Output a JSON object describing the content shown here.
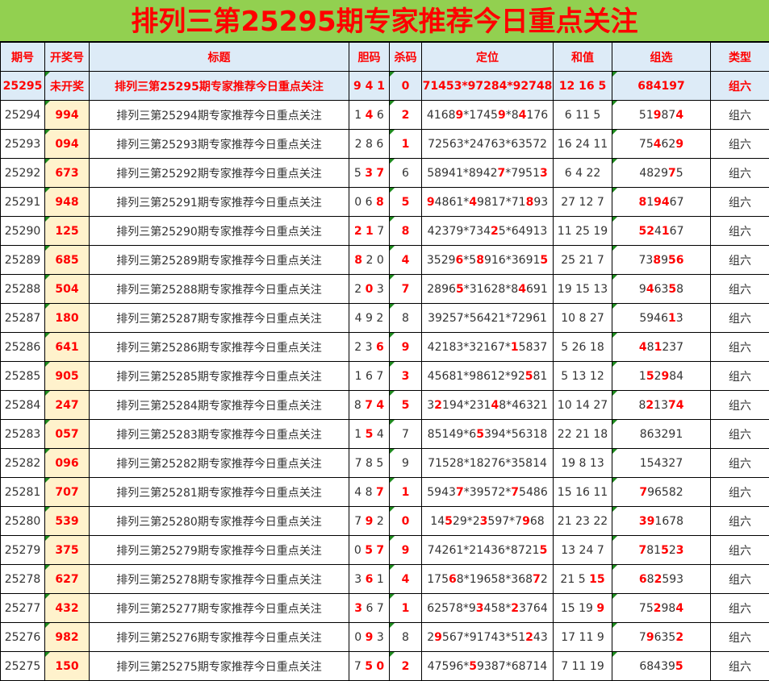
{
  "page_title": "排列三第25295期专家推荐今日重点关注",
  "colors": {
    "title_bg": "#92d050",
    "title_text": "#ff0000",
    "header_bg": "#ddebf7",
    "highlight": "#ff0000",
    "win_bg": "#fff2cc",
    "corner_mark": "#1e8a1e"
  },
  "headers": [
    "期号",
    "开奖号",
    "标题",
    "胆码",
    "杀码",
    "定位",
    "和值",
    "组选",
    "类型"
  ],
  "rows": [
    {
      "issue": "25295",
      "win": "未开奖",
      "title": "排列三第25295期专家推荐今日重点关注",
      "dan": "9 4 1",
      "sha": "0",
      "dingwei": "71453*97284*92748",
      "hezhi": "12 16 5",
      "zuxuan": "684197",
      "type": "组六"
    },
    {
      "issue": "25294",
      "win": "994",
      "title": "排列三第25294期专家推荐今日重点关注",
      "dan": "1 4 6",
      "sha": "2",
      "dingwei": "41689*17459*84176",
      "hezhi": "6 11 5",
      "zuxuan": "519874",
      "type": "组六"
    },
    {
      "issue": "25293",
      "win": "094",
      "title": "排列三第25293期专家推荐今日重点关注",
      "dan": "2 8 6",
      "sha": "1",
      "dingwei": "72563*24763*63572",
      "hezhi": "16 24 11",
      "zuxuan": "754629",
      "type": "组六"
    },
    {
      "issue": "25292",
      "win": "673",
      "title": "排列三第25292期专家推荐今日重点关注",
      "dan": "5 3 7",
      "sha": "6",
      "dingwei": "58941*89427*79513",
      "hezhi": "6 4 22",
      "zuxuan": "482975",
      "type": "组六"
    },
    {
      "issue": "25291",
      "win": "948",
      "title": "排列三第25291期专家推荐今日重点关注",
      "dan": "0 6 8",
      "sha": "5",
      "dingwei": "94861*49817*71893",
      "hezhi": "27 12 7",
      "zuxuan": "819467",
      "type": "组六"
    },
    {
      "issue": "25290",
      "win": "125",
      "title": "排列三第25290期专家推荐今日重点关注",
      "dan": "2 1 7",
      "sha": "8",
      "dingwei": "42379*73425*64913",
      "hezhi": "11 25 19",
      "zuxuan": "524167",
      "type": "组六"
    },
    {
      "issue": "25289",
      "win": "685",
      "title": "排列三第25289期专家推荐今日重点关注",
      "dan": "8 2 0",
      "sha": "4",
      "dingwei": "35296*58916*36915",
      "hezhi": "25 21 7",
      "zuxuan": "738956",
      "type": "组六"
    },
    {
      "issue": "25288",
      "win": "504",
      "title": "排列三第25288期专家推荐今日重点关注",
      "dan": "2 0 3",
      "sha": "7",
      "dingwei": "28965*31628*84691",
      "hezhi": "19 15 13",
      "zuxuan": "946358",
      "type": "组六"
    },
    {
      "issue": "25287",
      "win": "180",
      "title": "排列三第25287期专家推荐今日重点关注",
      "dan": "4 9 2",
      "sha": "8",
      "dingwei": "39257*56421*72961",
      "hezhi": "10 8 27",
      "zuxuan": "594613",
      "type": "组六"
    },
    {
      "issue": "25286",
      "win": "641",
      "title": "排列三第25286期专家推荐今日重点关注",
      "dan": "2 3 6",
      "sha": "9",
      "dingwei": "42183*32167*15837",
      "hezhi": "5 26 18",
      "zuxuan": "481237",
      "type": "组六"
    },
    {
      "issue": "25285",
      "win": "905",
      "title": "排列三第25285期专家推荐今日重点关注",
      "dan": "1 6 7",
      "sha": "3",
      "dingwei": "45681*98612*92581",
      "hezhi": "5 13 12",
      "zuxuan": "152984",
      "type": "组六"
    },
    {
      "issue": "25284",
      "win": "247",
      "title": "排列三第25284期专家推荐今日重点关注",
      "dan": "8 7 4",
      "sha": "5",
      "dingwei": "32194*23148*46321",
      "hezhi": "10 14 27",
      "zuxuan": "821374",
      "type": "组六"
    },
    {
      "issue": "25283",
      "win": "057",
      "title": "排列三第25283期专家推荐今日重点关注",
      "dan": "1 5 4",
      "sha": "7",
      "dingwei": "85149*65394*56318",
      "hezhi": "22 21 18",
      "zuxuan": "863291",
      "type": "组六"
    },
    {
      "issue": "25282",
      "win": "096",
      "title": "排列三第25282期专家推荐今日重点关注",
      "dan": "7 8 5",
      "sha": "9",
      "dingwei": "71528*18276*35814",
      "hezhi": "19 8 13",
      "zuxuan": "154327",
      "type": "组六"
    },
    {
      "issue": "25281",
      "win": "707",
      "title": "排列三第25281期专家推荐今日重点关注",
      "dan": "4 8 7",
      "sha": "1",
      "dingwei": "59437*39572*75486",
      "hezhi": "15 16 11",
      "zuxuan": "796582",
      "type": "组六"
    },
    {
      "issue": "25280",
      "win": "539",
      "title": "排列三第25280期专家推荐今日重点关注",
      "dan": "7 9 2",
      "sha": "0",
      "dingwei": "14529*23597*7968",
      "hezhi": "21 23 22",
      "zuxuan": "391678",
      "type": "组六"
    },
    {
      "issue": "25279",
      "win": "375",
      "title": "排列三第25279期专家推荐今日重点关注",
      "dan": "0 5 7",
      "sha": "9",
      "dingwei": "74261*21436*87215",
      "hezhi": "13 24 7",
      "zuxuan": "781523",
      "type": "组六"
    },
    {
      "issue": "25278",
      "win": "627",
      "title": "排列三第25278期专家推荐今日重点关注",
      "dan": "3 6 1",
      "sha": "4",
      "dingwei": "17568*19658*36872",
      "hezhi": "21 5 15",
      "zuxuan": "682593",
      "type": "组六"
    },
    {
      "issue": "25277",
      "win": "432",
      "title": "排列三第25277期专家推荐今日重点关注",
      "dan": "3 6 7",
      "sha": "1",
      "dingwei": "62578*93458*23764",
      "hezhi": "15 19 9",
      "zuxuan": "752984",
      "type": "组六"
    },
    {
      "issue": "25276",
      "win": "982",
      "title": "排列三第25276期专家推荐今日重点关注",
      "dan": "0 9 3",
      "sha": "8",
      "dingwei": "29567*91743*51243",
      "hezhi": "17 11 9",
      "zuxuan": "796352",
      "type": "组六"
    },
    {
      "issue": "25275",
      "win": "150",
      "title": "排列三第25275期专家推荐今日重点关注",
      "dan": "7 5 0",
      "sha": "2",
      "dingwei": "47596*59387*68714",
      "hezhi": "7 11 19",
      "zuxuan": "684395",
      "type": "组六"
    }
  ]
}
